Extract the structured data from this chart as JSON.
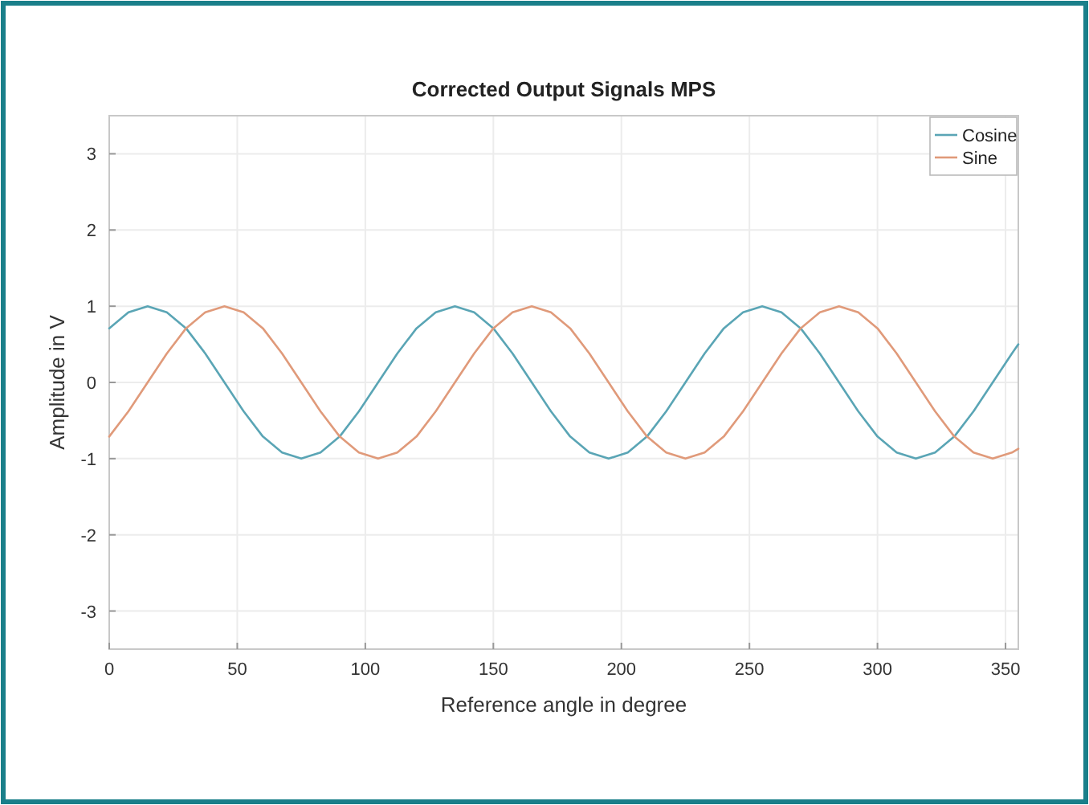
{
  "chart_data": {
    "type": "line",
    "title": "Corrected Output Signals MPS",
    "xlabel": "Reference angle in degree",
    "ylabel": "Amplitude in V",
    "x": [
      0,
      7.5,
      15,
      22.5,
      30,
      37.5,
      45,
      52.5,
      60,
      67.5,
      75,
      82.5,
      90,
      97.5,
      105,
      112.5,
      120,
      127.5,
      135,
      142.5,
      150,
      157.5,
      165,
      172.5,
      180,
      187.5,
      195,
      202.5,
      210,
      217.5,
      225,
      232.5,
      240,
      247.5,
      255,
      262.5,
      270,
      277.5,
      285,
      292.5,
      300,
      307.5,
      315,
      322.5,
      330,
      337.5,
      345,
      352.5,
      355
    ],
    "series": [
      {
        "name": "Cosine",
        "color": "#5aa5b5",
        "values": [
          0.71,
          0.92,
          1,
          0.92,
          0.71,
          0.38,
          0,
          -0.38,
          -0.71,
          -0.92,
          -1,
          -0.92,
          -0.71,
          -0.38,
          0,
          0.38,
          0.71,
          0.92,
          1,
          0.92,
          0.71,
          0.38,
          0,
          -0.38,
          -0.71,
          -0.92,
          -1,
          -0.92,
          -0.71,
          -0.38,
          0,
          0.38,
          0.71,
          0.92,
          1,
          0.92,
          0.71,
          0.38,
          0,
          -0.38,
          -0.71,
          -0.92,
          -1,
          -0.92,
          -0.71,
          -0.38,
          0,
          0.38,
          0.5
        ]
      },
      {
        "name": "Sine",
        "color": "#e09a7a",
        "values": [
          -0.71,
          -0.38,
          0,
          0.38,
          0.71,
          0.92,
          1,
          0.92,
          0.71,
          0.38,
          0,
          -0.38,
          -0.71,
          -0.92,
          -1,
          -0.92,
          -0.71,
          -0.38,
          0,
          0.38,
          0.71,
          0.92,
          1,
          0.92,
          0.71,
          0.38,
          0,
          -0.38,
          -0.71,
          -0.92,
          -1,
          -0.92,
          -0.71,
          -0.38,
          0,
          0.38,
          0.71,
          0.92,
          1,
          0.92,
          0.71,
          0.38,
          0,
          -0.38,
          -0.71,
          -0.92,
          -1,
          -0.92,
          -0.87
        ]
      }
    ],
    "xlim": [
      0,
      355
    ],
    "xticks": [
      0,
      50,
      100,
      150,
      200,
      250,
      300,
      350
    ],
    "ylim": [
      -3.5,
      3.5
    ],
    "yticks": [
      -3,
      -2,
      -1,
      0,
      1,
      2,
      3
    ],
    "grid": true,
    "legend": "top right",
    "marker": "none",
    "line_style": "solid"
  }
}
